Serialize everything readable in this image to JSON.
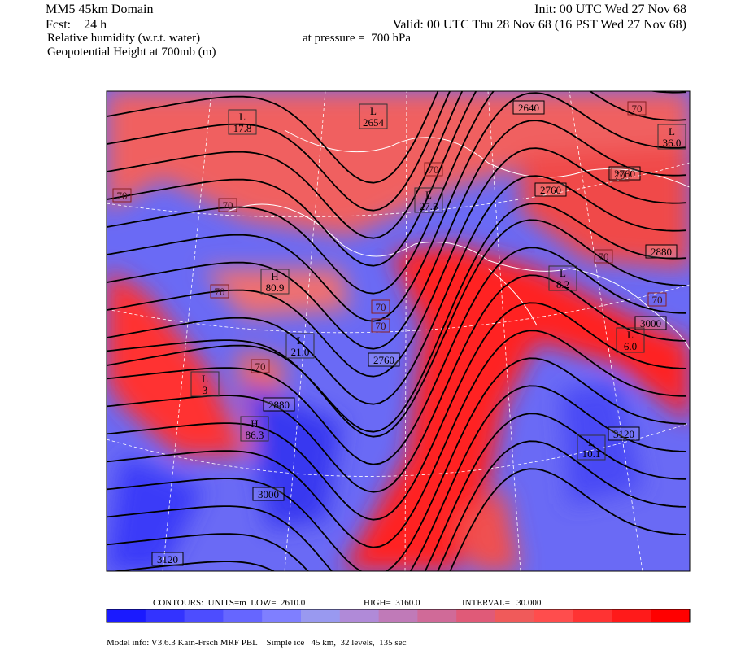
{
  "header": {
    "model": "MM5 45km Domain",
    "init": "Init: 00 UTC Wed 27 Nov 68",
    "fcst": "Fcst:    24 h",
    "valid": "Valid: 00 UTC Thu 28 Nov 68 (16 PST Wed 27 Nov 68)",
    "field1": "Relative humidity (w.r.t. water)",
    "pressure": "at pressure =  700 hPa",
    "field2": "Geopotential Height at 700mb (m)"
  },
  "height_labels": [
    "2640",
    "2760",
    "2760",
    "2760",
    "2880",
    "2880",
    "3000",
    "3000",
    "3120",
    "3120"
  ],
  "centers": [
    {
      "symbol": "L",
      "value": "17.8"
    },
    {
      "symbol": "L",
      "value": "2654"
    },
    {
      "symbol": "L",
      "value": "36.0"
    },
    {
      "symbol": "L",
      "value": "27.5"
    },
    {
      "symbol": "H",
      "value": "80.9"
    },
    {
      "symbol": "L",
      "value": "21.0"
    },
    {
      "symbol": "L",
      "value": "3"
    },
    {
      "symbol": "H",
      "value": "86.3"
    },
    {
      "symbol": "L",
      "value": "8.2"
    },
    {
      "symbol": "L",
      "value": "6.0"
    },
    {
      "symbol": "L",
      "value": "10.1"
    }
  ],
  "rh_labels": [
    "70",
    "70",
    "70",
    "70",
    "70",
    "70",
    "70",
    "70",
    "70",
    "70",
    "70"
  ],
  "colorbar": {
    "contours": "CONTOURS:  UNITS=m  LOW=  2610.0",
    "high": "HIGH=  3160.0",
    "interval": "INTERVAL=   30.000",
    "colors": [
      "#1a1aff",
      "#3333ff",
      "#4d4dff",
      "#6666ff",
      "#7f7fff",
      "#9999f0",
      "#b08ad8",
      "#c07ab8",
      "#d06a98",
      "#e05a78",
      "#f05a5a",
      "#ff4d4d",
      "#ff3333",
      "#ff1a1a",
      "#ff0000"
    ]
  },
  "footer": "Model info: V3.6.3 Kain-Frsch MRF PBL    Simple ice   45 km,  32 levels,  135 sec"
}
